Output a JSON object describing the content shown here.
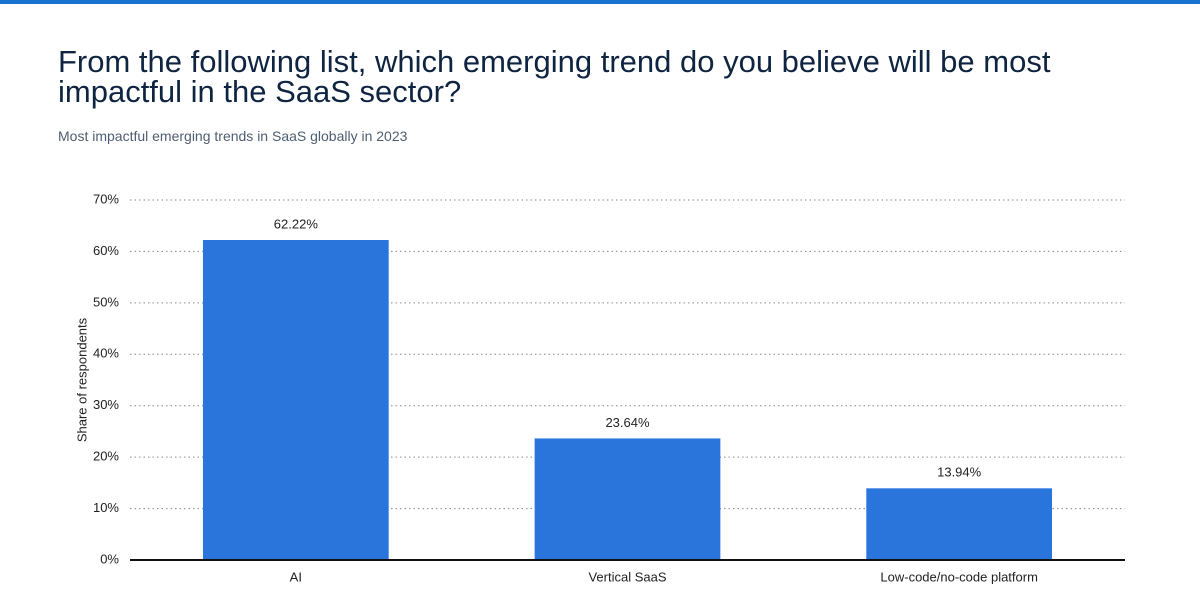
{
  "chart_data": {
    "type": "bar",
    "title": "From the following list, which emerging trend do you believe will be most impactful in the SaaS sector?",
    "subtitle": "Most impactful emerging trends in SaaS globally in 2023",
    "y_label": "Share of respondents",
    "categories": [
      "AI",
      "Vertical SaaS",
      "Low-code/no-code platform"
    ],
    "values": [
      62.22,
      23.64,
      13.94
    ],
    "value_labels": [
      "62.22%",
      "23.64%",
      "13.94%"
    ],
    "color": "#2a75dc",
    "ylim": [
      0,
      70
    ],
    "yticks": [
      {
        "value": 0,
        "label": "0%"
      },
      {
        "value": 10,
        "label": "10%"
      },
      {
        "value": 20,
        "label": "20%"
      },
      {
        "value": 30,
        "label": "30%"
      },
      {
        "value": 40,
        "label": "40%"
      },
      {
        "value": 50,
        "label": "50%"
      },
      {
        "value": 60,
        "label": "60%"
      },
      {
        "value": 70,
        "label": "70%"
      }
    ],
    "grid": true
  }
}
